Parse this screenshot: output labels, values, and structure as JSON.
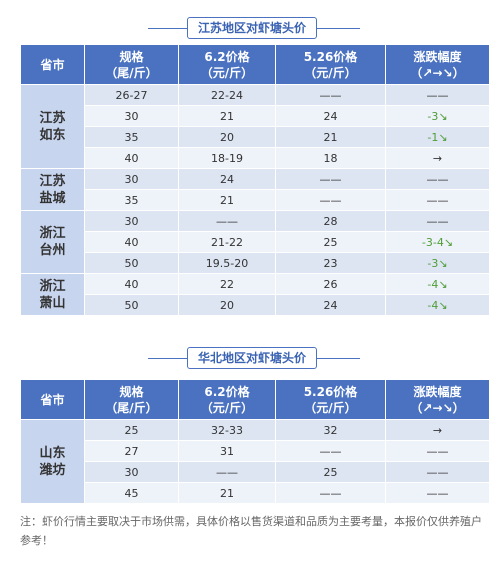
{
  "sections": [
    {
      "title": "江苏地区对虾塘头价",
      "headers": [
        [
          "省市"
        ],
        [
          "规格",
          "（尾/斤）"
        ],
        [
          "6.2价格",
          "（元/斤）"
        ],
        [
          "5.26价格",
          "（元/斤）"
        ],
        [
          "涨跌幅度",
          "（↗→↘）"
        ]
      ],
      "groups": [
        {
          "region": [
            "江苏",
            "如东"
          ],
          "rows": [
            [
              "26-27",
              "22-24",
              "——",
              "——"
            ],
            [
              "30",
              "21",
              "24",
              "-3↘"
            ],
            [
              "35",
              "20",
              "21",
              "-1↘"
            ],
            [
              "40",
              "18-19",
              "18",
              "→"
            ]
          ]
        },
        {
          "region": [
            "江苏",
            "盐城"
          ],
          "rows": [
            [
              "30",
              "24",
              "——",
              "——"
            ],
            [
              "35",
              "21",
              "——",
              "——"
            ]
          ]
        },
        {
          "region": [
            "浙江",
            "台州"
          ],
          "rows": [
            [
              "30",
              "——",
              "28",
              "——"
            ],
            [
              "40",
              "21-22",
              "25",
              "-3-4↘"
            ],
            [
              "50",
              "19.5-20",
              "23",
              "-3↘"
            ]
          ]
        },
        {
          "region": [
            "浙江",
            "萧山"
          ],
          "rows": [
            [
              "40",
              "22",
              "26",
              "-4↘"
            ],
            [
              "50",
              "20",
              "24",
              "-4↘"
            ]
          ]
        }
      ]
    },
    {
      "title": "华北地区对虾塘头价",
      "headers": [
        [
          "省市"
        ],
        [
          "规格",
          "（尾/斤）"
        ],
        [
          "6.2价格",
          "（元/斤）"
        ],
        [
          "5.26价格",
          "（元/斤）"
        ],
        [
          "涨跌幅度",
          "（↗→↘）"
        ]
      ],
      "groups": [
        {
          "region": [
            "山东",
            "潍坊"
          ],
          "rows": [
            [
              "25",
              "32-33",
              "32",
              "→"
            ],
            [
              "27",
              "31",
              "——",
              "——"
            ],
            [
              "30",
              "——",
              "25",
              "——"
            ],
            [
              "45",
              "21",
              "——",
              "——"
            ]
          ]
        }
      ]
    }
  ],
  "note": "注：虾价行情主要取决于市场供需，具体价格以售货渠道和品质为主要考量，本报价仅供养殖户参考！"
}
